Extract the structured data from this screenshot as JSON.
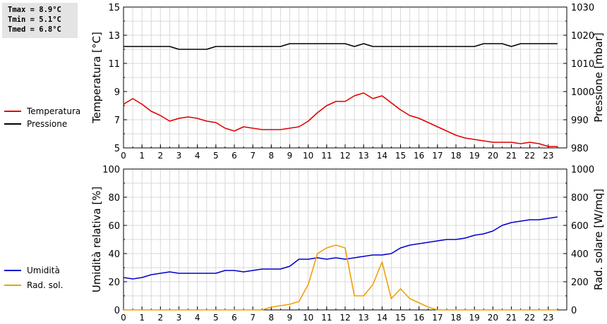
{
  "stats": [
    {
      "label": "Tmax",
      "value": "8.9°C"
    },
    {
      "label": "Tmin",
      "value": "5.1°C"
    },
    {
      "label": "Tmed",
      "value": "6.8°C"
    }
  ],
  "chart_data": [
    {
      "type": "line",
      "ylabel_left": "Temperatura [°C]",
      "ylabel_right": "Pressione [mbar]",
      "xlim": [
        0,
        24
      ],
      "ylim_left": [
        5,
        15
      ],
      "ylim_right": [
        980,
        1030
      ],
      "xticks": [
        "0",
        "1",
        "2",
        "3",
        "4",
        "5",
        "6",
        "7",
        "8",
        "9",
        "10",
        "11",
        "12",
        "13",
        "14",
        "15",
        "16",
        "17",
        "18",
        "19",
        "20",
        "21",
        "22",
        "23"
      ],
      "yticks_left": [
        "5",
        "7",
        "9",
        "11",
        "13",
        "15"
      ],
      "yticks_right": [
        "980",
        "990",
        "1000",
        "1010",
        "1020",
        "1030"
      ],
      "grid": true,
      "legend_position": "left",
      "series": [
        {
          "name": "Temperatura",
          "axis": "left",
          "color": "#e00000",
          "x": [
            0,
            0.5,
            1,
            1.5,
            2,
            2.5,
            3,
            3.5,
            4,
            4.5,
            5,
            5.5,
            6,
            6.5,
            7,
            7.5,
            8,
            8.5,
            9,
            9.5,
            10,
            10.5,
            11,
            11.5,
            12,
            12.5,
            13,
            13.5,
            14,
            14.5,
            15,
            15.5,
            16,
            16.5,
            17,
            17.5,
            18,
            18.5,
            19,
            19.5,
            20,
            20.5,
            21,
            21.5,
            22,
            22.5,
            23,
            23.5
          ],
          "y": [
            8.1,
            8.5,
            8.1,
            7.6,
            7.3,
            6.9,
            7.1,
            7.2,
            7.1,
            6.9,
            6.8,
            6.4,
            6.2,
            6.5,
            6.4,
            6.3,
            6.3,
            6.3,
            6.4,
            6.5,
            6.9,
            7.5,
            8.0,
            8.3,
            8.3,
            8.7,
            8.9,
            8.5,
            8.7,
            8.2,
            7.7,
            7.3,
            7.1,
            6.8,
            6.5,
            6.2,
            5.9,
            5.7,
            5.6,
            5.5,
            5.4,
            5.4,
            5.4,
            5.3,
            5.4,
            5.3,
            5.1,
            5.1
          ]
        },
        {
          "name": "Pressione",
          "axis": "right",
          "color": "#000000",
          "x": [
            0,
            0.5,
            1,
            1.5,
            2,
            2.5,
            3,
            3.5,
            4,
            4.5,
            5,
            5.5,
            6,
            6.5,
            7,
            7.5,
            8,
            8.5,
            9,
            9.5,
            10,
            10.5,
            11,
            11.5,
            12,
            12.5,
            13,
            13.5,
            14,
            14.5,
            15,
            15.5,
            16,
            16.5,
            17,
            17.5,
            18,
            18.5,
            19,
            19.5,
            20,
            20.5,
            21,
            21.5,
            22,
            22.5,
            23,
            23.5
          ],
          "y": [
            1016,
            1016,
            1016,
            1016,
            1016,
            1016,
            1015,
            1015,
            1015,
            1015,
            1016,
            1016,
            1016,
            1016,
            1016,
            1016,
            1016,
            1016,
            1017,
            1017,
            1017,
            1017,
            1017,
            1017,
            1017,
            1016,
            1017,
            1016,
            1016,
            1016,
            1016,
            1016,
            1016,
            1016,
            1016,
            1016,
            1016,
            1016,
            1016,
            1017,
            1017,
            1017,
            1016,
            1017,
            1017,
            1017,
            1017,
            1017
          ]
        }
      ]
    },
    {
      "type": "line",
      "ylabel_left": "Umidità relativa [%]",
      "ylabel_right": "Rad. solare [W/mq]",
      "xlim": [
        0,
        24
      ],
      "ylim_left": [
        0,
        100
      ],
      "ylim_right": [
        0,
        1000
      ],
      "xticks": [
        "0",
        "1",
        "2",
        "3",
        "4",
        "5",
        "6",
        "7",
        "8",
        "9",
        "10",
        "11",
        "12",
        "13",
        "14",
        "15",
        "16",
        "17",
        "18",
        "19",
        "20",
        "21",
        "22",
        "23"
      ],
      "yticks_left": [
        "0",
        "20",
        "40",
        "60",
        "80",
        "100"
      ],
      "yticks_right": [
        "0",
        "200",
        "400",
        "600",
        "800",
        "1000"
      ],
      "grid": true,
      "legend_position": "left",
      "series": [
        {
          "name": "Umidità",
          "axis": "left",
          "color": "#0000cc",
          "x": [
            0,
            0.5,
            1,
            1.5,
            2,
            2.5,
            3,
            3.5,
            4,
            4.5,
            5,
            5.5,
            6,
            6.5,
            7,
            7.5,
            8,
            8.5,
            9,
            9.5,
            10,
            10.5,
            11,
            11.5,
            12,
            12.5,
            13,
            13.5,
            14,
            14.5,
            15,
            15.5,
            16,
            16.5,
            17,
            17.5,
            18,
            18.5,
            19,
            19.5,
            20,
            20.5,
            21,
            21.5,
            22,
            22.5,
            23,
            23.5
          ],
          "y": [
            23,
            22,
            23,
            25,
            26,
            27,
            26,
            26,
            26,
            26,
            26,
            28,
            28,
            27,
            28,
            29,
            29,
            29,
            31,
            36,
            36,
            37,
            36,
            37,
            36,
            37,
            38,
            39,
            39,
            40,
            44,
            46,
            47,
            48,
            49,
            50,
            50,
            51,
            53,
            54,
            56,
            60,
            62,
            63,
            64,
            64,
            65,
            66
          ]
        },
        {
          "name": "Rad. sol.",
          "axis": "right",
          "color": "#f0a000",
          "x": [
            0,
            1,
            2,
            3,
            4,
            5,
            6,
            7,
            7.5,
            8,
            8.5,
            9,
            9.5,
            10,
            10.5,
            11,
            11.5,
            12,
            12.5,
            13,
            13.5,
            14,
            14.5,
            15,
            15.5,
            16,
            16.5,
            17,
            18,
            19,
            20,
            21,
            22,
            23,
            23.5
          ],
          "y": [
            0,
            0,
            0,
            0,
            0,
            0,
            0,
            0,
            0,
            20,
            30,
            40,
            60,
            180,
            400,
            440,
            460,
            440,
            100,
            100,
            180,
            340,
            80,
            150,
            80,
            50,
            20,
            0,
            0,
            0,
            0,
            0,
            0,
            0,
            0
          ]
        }
      ]
    }
  ]
}
